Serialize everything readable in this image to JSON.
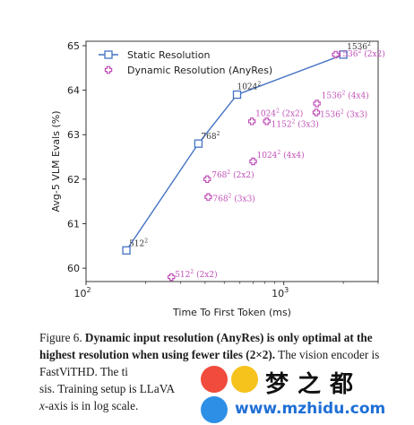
{
  "chart_data": {
    "type": "scatter",
    "xscale": "log",
    "xlim": [
      100,
      3000
    ],
    "ylim": [
      59.7,
      65.1
    ],
    "xlabel": "Time To First Token (ms)",
    "ylabel": "Avg-5 VLM Evals (%)",
    "yticks": [
      60,
      61,
      62,
      63,
      64,
      65
    ],
    "xticks": [
      {
        "value": 100,
        "base": "10",
        "exp": "2"
      },
      {
        "value": 1000,
        "base": "10",
        "exp": "3"
      }
    ],
    "legend": "top-left",
    "series": [
      {
        "name": "Static Resolution",
        "style": "line-square",
        "color": "#4472c4",
        "points": [
          {
            "x": 160,
            "y": 60.4,
            "label": "512",
            "sup": "2",
            "tiles": ""
          },
          {
            "x": 370,
            "y": 62.8,
            "label": "768",
            "sup": "2",
            "tiles": ""
          },
          {
            "x": 580,
            "y": 63.9,
            "label": "1024",
            "sup": "2",
            "tiles": ""
          },
          {
            "x": 2000,
            "y": 64.8,
            "label": "1536",
            "sup": "2",
            "tiles": ""
          }
        ]
      },
      {
        "name": "Dynamic Resolution (AnyRes)",
        "style": "plus-marker",
        "color": "#c050b8",
        "points": [
          {
            "x": 270,
            "y": 59.8,
            "label": "512",
            "sup": "2",
            "tiles": "(2x2)"
          },
          {
            "x": 410,
            "y": 62.0,
            "label": "768",
            "sup": "2",
            "tiles": "(2x2)"
          },
          {
            "x": 415,
            "y": 61.6,
            "label": "768",
            "sup": "2",
            "tiles": "(3x3)"
          },
          {
            "x": 700,
            "y": 62.4,
            "label": "1024",
            "sup": "2",
            "tiles": "(4x4)"
          },
          {
            "x": 690,
            "y": 63.3,
            "label": "1024",
            "sup": "2",
            "tiles": "(2x2)"
          },
          {
            "x": 820,
            "y": 63.3,
            "label": "1152",
            "sup": "2",
            "tiles": "(3x3)"
          },
          {
            "x": 1470,
            "y": 63.7,
            "label": "1536",
            "sup": "2",
            "tiles": "(4x4)"
          },
          {
            "x": 1460,
            "y": 63.5,
            "label": "1536",
            "sup": "2",
            "tiles": "(3x3)"
          },
          {
            "x": 1830,
            "y": 64.8,
            "label": "1536",
            "sup": "2",
            "tiles": "(2x2)"
          }
        ]
      }
    ]
  },
  "caption": {
    "prefix": "Figure 6. ",
    "bold": "Dynamic input resolution (AnyRes) is only optimal at the highest resolution when using fewer tiles (2×2).",
    "rest1": " The vision encoder is FastViTHD. The ti",
    "rest2": "sis.  Training setup is LLaVA",
    "rest3": "x",
    "rest4": "-axis is in log scale."
  },
  "watermark": {
    "title": "梦之都",
    "url": "www.mzhidu.com"
  }
}
